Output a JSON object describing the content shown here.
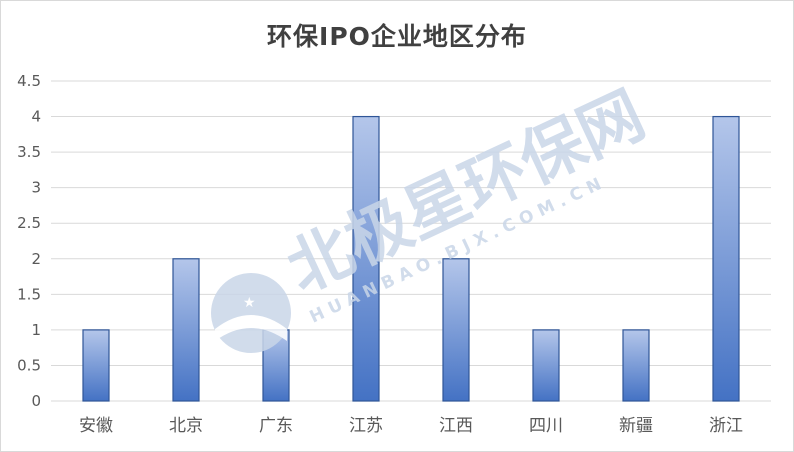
{
  "chart_data": {
    "type": "bar",
    "title": "环保IPO企业地区分布",
    "categories": [
      "安徽",
      "北京",
      "广东",
      "江苏",
      "江西",
      "四川",
      "新疆",
      "浙江"
    ],
    "values": [
      1,
      2,
      1,
      4,
      2,
      1,
      1,
      4
    ],
    "ylim": [
      0,
      4.5
    ],
    "yticks": [
      "0",
      "0.5",
      "1",
      "1.5",
      "2",
      "2.5",
      "3",
      "3.5",
      "4",
      "4.5"
    ],
    "grid": true,
    "legend": "none",
    "colors": {
      "bar_top": "#b4c6ea",
      "bar_bottom": "#4472c4",
      "bar_edge": "#2f5597",
      "grid": "#d9d9d9"
    }
  },
  "watermark": {
    "main_text": "北极星环保网",
    "sub_text": "HUANBAO.BJX.COM.CN",
    "color": "#c9d6e8"
  }
}
